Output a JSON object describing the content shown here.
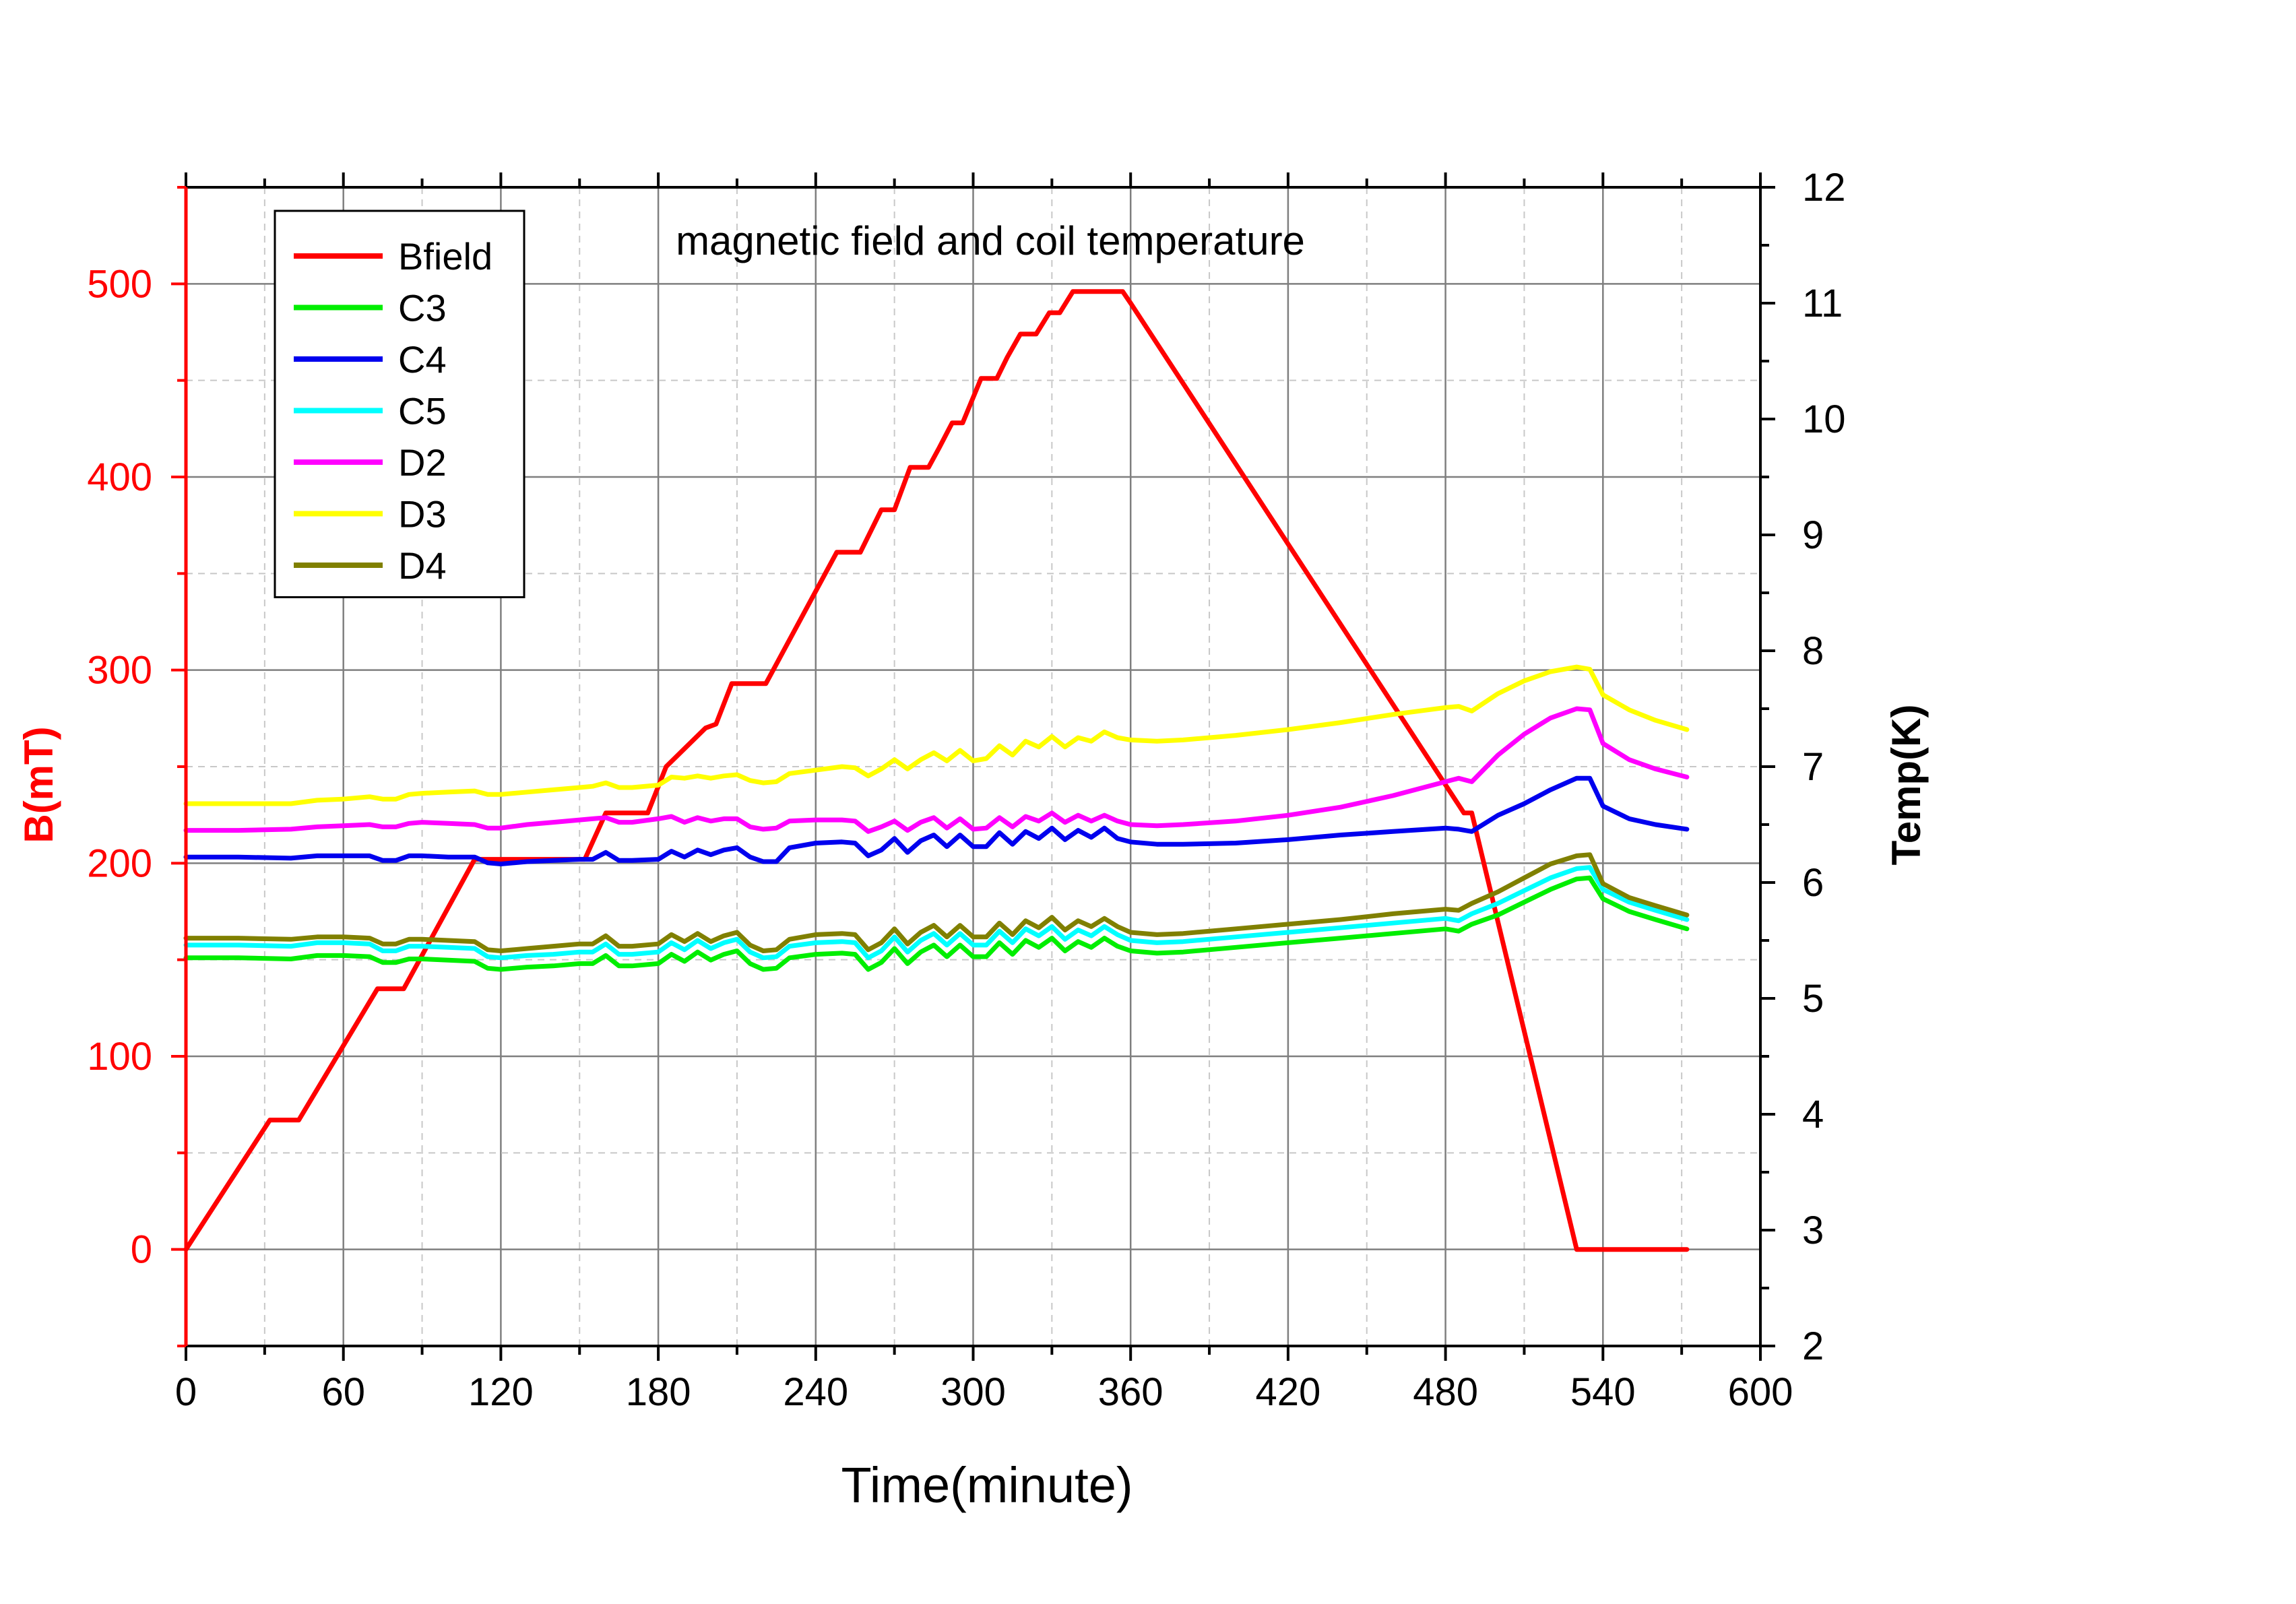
{
  "colors": {
    "left_axis": "#ff0000",
    "right_axis": "#000000",
    "grid_major": "#7f7f7f",
    "grid_minor": "#c8c8c8"
  },
  "chart_data": {
    "type": "line",
    "title": "magnetic field and coil temperature",
    "xlabel": "Time(minute)",
    "ylabel_left": "B(mT)",
    "ylabel_right": "Temp(K)",
    "xlim": [
      0,
      600
    ],
    "ylim_left": [
      -50,
      550
    ],
    "ylim_right": [
      2,
      12
    ],
    "xticks": [
      "0",
      "60",
      "120",
      "180",
      "240",
      "300",
      "360",
      "420",
      "480",
      "540",
      "600"
    ],
    "yticks_left": [
      "0",
      "100",
      "200",
      "300",
      "400",
      "500"
    ],
    "yticks_right": [
      "2",
      "3",
      "4",
      "5",
      "6",
      "7",
      "8",
      "9",
      "10",
      "11",
      "12"
    ],
    "grid": true,
    "legend_position": "top-left",
    "series": [
      {
        "name": "Bfield",
        "axis": "left",
        "color": "#ff0000",
        "x": [
          0,
          32,
          43,
          73,
          83,
          110,
          152,
          160,
          176,
          183,
          198,
          202,
          208,
          221,
          248,
          257,
          265,
          270,
          276,
          283,
          287,
          292,
          296,
          303,
          309,
          313,
          318,
          324,
          329,
          333,
          338,
          345,
          357,
          360,
          487,
          490,
          530,
          572
        ],
        "y": [
          0,
          67,
          67,
          135,
          135,
          202,
          202,
          226,
          226,
          250,
          270,
          272,
          293,
          293,
          361,
          361,
          383,
          383,
          405,
          405,
          415,
          428,
          428,
          451,
          451,
          462,
          474,
          474,
          485,
          485,
          496,
          496,
          496,
          490,
          226,
          226,
          0,
          0
        ]
      },
      {
        "name": "C3",
        "axis": "right",
        "color": "#00ee00",
        "x": [
          0,
          20,
          40,
          50,
          60,
          70,
          75,
          80,
          85,
          90,
          100,
          110,
          115,
          120,
          130,
          140,
          150,
          155,
          160,
          165,
          170,
          180,
          185,
          190,
          195,
          200,
          205,
          210,
          215,
          220,
          225,
          230,
          240,
          250,
          255,
          260,
          265,
          270,
          275,
          280,
          285,
          290,
          295,
          300,
          305,
          310,
          315,
          320,
          325,
          330,
          335,
          340,
          345,
          350,
          355,
          360,
          370,
          380,
          400,
          420,
          440,
          460,
          480,
          485,
          490,
          500,
          510,
          520,
          530,
          535,
          540,
          550,
          560,
          572
        ],
        "y": [
          5.35,
          5.35,
          5.34,
          5.37,
          5.37,
          5.36,
          5.31,
          5.31,
          5.34,
          5.34,
          5.33,
          5.32,
          5.26,
          5.25,
          5.27,
          5.28,
          5.3,
          5.3,
          5.37,
          5.28,
          5.28,
          5.3,
          5.38,
          5.32,
          5.4,
          5.33,
          5.38,
          5.41,
          5.3,
          5.25,
          5.26,
          5.35,
          5.38,
          5.39,
          5.38,
          5.25,
          5.31,
          5.43,
          5.3,
          5.4,
          5.46,
          5.36,
          5.46,
          5.36,
          5.36,
          5.48,
          5.38,
          5.5,
          5.44,
          5.52,
          5.41,
          5.49,
          5.44,
          5.52,
          5.45,
          5.41,
          5.39,
          5.4,
          5.44,
          5.48,
          5.52,
          5.56,
          5.6,
          5.58,
          5.64,
          5.72,
          5.83,
          5.94,
          6.03,
          6.04,
          5.86,
          5.75,
          5.68,
          5.6
        ]
      },
      {
        "name": "C4",
        "axis": "right",
        "color": "#0000ee",
        "x": [
          0,
          20,
          40,
          50,
          60,
          70,
          75,
          80,
          85,
          90,
          100,
          110,
          115,
          120,
          130,
          140,
          150,
          155,
          160,
          165,
          170,
          180,
          185,
          190,
          195,
          200,
          205,
          210,
          215,
          220,
          225,
          230,
          240,
          250,
          255,
          260,
          265,
          270,
          275,
          280,
          285,
          290,
          295,
          300,
          305,
          310,
          315,
          320,
          325,
          330,
          335,
          340,
          345,
          350,
          355,
          360,
          370,
          380,
          400,
          420,
          440,
          460,
          480,
          485,
          490,
          500,
          510,
          520,
          530,
          535,
          540,
          550,
          560,
          572
        ],
        "y": [
          6.22,
          6.22,
          6.21,
          6.23,
          6.23,
          6.23,
          6.19,
          6.19,
          6.23,
          6.23,
          6.22,
          6.22,
          6.17,
          6.16,
          6.18,
          6.19,
          6.2,
          6.2,
          6.26,
          6.19,
          6.19,
          6.2,
          6.27,
          6.22,
          6.28,
          6.24,
          6.28,
          6.3,
          6.22,
          6.18,
          6.18,
          6.3,
          6.34,
          6.35,
          6.34,
          6.23,
          6.28,
          6.38,
          6.26,
          6.36,
          6.41,
          6.31,
          6.41,
          6.31,
          6.31,
          6.43,
          6.33,
          6.44,
          6.38,
          6.47,
          6.37,
          6.45,
          6.39,
          6.47,
          6.38,
          6.35,
          6.33,
          6.33,
          6.34,
          6.37,
          6.41,
          6.44,
          6.47,
          6.46,
          6.44,
          6.58,
          6.68,
          6.8,
          6.9,
          6.9,
          6.66,
          6.55,
          6.5,
          6.46
        ]
      },
      {
        "name": "C5",
        "axis": "right",
        "color": "#00ffff",
        "x": [
          0,
          20,
          40,
          50,
          60,
          70,
          75,
          80,
          85,
          90,
          100,
          110,
          115,
          120,
          130,
          140,
          150,
          155,
          160,
          165,
          170,
          180,
          185,
          190,
          195,
          200,
          205,
          210,
          215,
          220,
          225,
          230,
          240,
          250,
          255,
          260,
          265,
          270,
          275,
          280,
          285,
          290,
          295,
          300,
          305,
          310,
          315,
          320,
          325,
          330,
          335,
          340,
          345,
          350,
          355,
          360,
          370,
          380,
          400,
          420,
          440,
          460,
          480,
          485,
          490,
          500,
          510,
          520,
          530,
          535,
          540,
          550,
          560,
          572
        ],
        "y": [
          5.46,
          5.46,
          5.45,
          5.48,
          5.48,
          5.47,
          5.41,
          5.41,
          5.45,
          5.45,
          5.44,
          5.43,
          5.36,
          5.35,
          5.37,
          5.38,
          5.4,
          5.4,
          5.47,
          5.38,
          5.38,
          5.4,
          5.48,
          5.42,
          5.5,
          5.43,
          5.48,
          5.51,
          5.4,
          5.35,
          5.36,
          5.45,
          5.48,
          5.49,
          5.48,
          5.35,
          5.41,
          5.53,
          5.4,
          5.5,
          5.56,
          5.46,
          5.56,
          5.46,
          5.46,
          5.58,
          5.48,
          5.6,
          5.54,
          5.62,
          5.51,
          5.59,
          5.54,
          5.62,
          5.55,
          5.5,
          5.48,
          5.49,
          5.53,
          5.57,
          5.61,
          5.65,
          5.69,
          5.67,
          5.73,
          5.82,
          5.93,
          6.04,
          6.12,
          6.13,
          5.94,
          5.83,
          5.76,
          5.68
        ]
      },
      {
        "name": "D2",
        "axis": "right",
        "color": "#ff00ff",
        "x": [
          0,
          20,
          40,
          50,
          60,
          70,
          75,
          80,
          85,
          90,
          100,
          110,
          115,
          120,
          130,
          140,
          150,
          155,
          160,
          165,
          170,
          180,
          185,
          190,
          195,
          200,
          205,
          210,
          215,
          220,
          225,
          230,
          240,
          250,
          255,
          260,
          265,
          270,
          275,
          280,
          285,
          290,
          295,
          300,
          305,
          310,
          315,
          320,
          325,
          330,
          335,
          340,
          345,
          350,
          355,
          360,
          370,
          380,
          400,
          420,
          440,
          460,
          480,
          485,
          490,
          500,
          510,
          520,
          530,
          535,
          540,
          550,
          560,
          572
        ],
        "y": [
          6.45,
          6.45,
          6.46,
          6.48,
          6.49,
          6.5,
          6.48,
          6.48,
          6.51,
          6.52,
          6.51,
          6.5,
          6.47,
          6.47,
          6.5,
          6.52,
          6.54,
          6.55,
          6.56,
          6.52,
          6.52,
          6.55,
          6.57,
          6.52,
          6.56,
          6.53,
          6.55,
          6.55,
          6.48,
          6.46,
          6.47,
          6.53,
          6.54,
          6.54,
          6.53,
          6.44,
          6.48,
          6.53,
          6.45,
          6.52,
          6.56,
          6.47,
          6.55,
          6.46,
          6.47,
          6.56,
          6.48,
          6.57,
          6.53,
          6.6,
          6.52,
          6.58,
          6.53,
          6.58,
          6.53,
          6.5,
          6.49,
          6.5,
          6.53,
          6.58,
          6.65,
          6.75,
          6.87,
          6.9,
          6.87,
          7.1,
          7.28,
          7.42,
          7.5,
          7.49,
          7.2,
          7.06,
          6.98,
          6.91
        ]
      },
      {
        "name": "D3",
        "axis": "right",
        "color": "#ffff00",
        "x": [
          0,
          20,
          40,
          50,
          60,
          70,
          75,
          80,
          85,
          90,
          100,
          110,
          115,
          120,
          130,
          140,
          150,
          155,
          160,
          165,
          170,
          180,
          185,
          190,
          195,
          200,
          205,
          210,
          215,
          220,
          225,
          230,
          240,
          250,
          255,
          260,
          265,
          270,
          275,
          280,
          285,
          290,
          295,
          300,
          305,
          310,
          315,
          320,
          325,
          330,
          335,
          340,
          345,
          350,
          355,
          360,
          370,
          380,
          400,
          420,
          440,
          460,
          480,
          485,
          490,
          500,
          510,
          520,
          530,
          535,
          540,
          550,
          560,
          572
        ],
        "y": [
          6.68,
          6.68,
          6.68,
          6.71,
          6.72,
          6.74,
          6.72,
          6.72,
          6.76,
          6.77,
          6.78,
          6.79,
          6.76,
          6.76,
          6.78,
          6.8,
          6.82,
          6.83,
          6.86,
          6.82,
          6.82,
          6.84,
          6.91,
          6.9,
          6.92,
          6.9,
          6.92,
          6.93,
          6.88,
          6.86,
          6.87,
          6.94,
          6.97,
          7.0,
          6.99,
          6.92,
          6.98,
          7.06,
          6.98,
          7.06,
          7.12,
          7.05,
          7.14,
          7.05,
          7.07,
          7.18,
          7.1,
          7.22,
          7.17,
          7.26,
          7.17,
          7.25,
          7.22,
          7.3,
          7.25,
          7.23,
          7.22,
          7.23,
          7.27,
          7.32,
          7.38,
          7.45,
          7.51,
          7.52,
          7.48,
          7.63,
          7.74,
          7.82,
          7.86,
          7.84,
          7.62,
          7.49,
          7.4,
          7.32
        ]
      },
      {
        "name": "D4",
        "axis": "right",
        "color": "#808000",
        "x": [
          0,
          20,
          40,
          50,
          60,
          70,
          75,
          80,
          85,
          90,
          100,
          110,
          115,
          120,
          130,
          140,
          150,
          155,
          160,
          165,
          170,
          180,
          185,
          190,
          195,
          200,
          205,
          210,
          215,
          220,
          225,
          230,
          240,
          250,
          255,
          260,
          265,
          270,
          275,
          280,
          285,
          290,
          295,
          300,
          305,
          310,
          315,
          320,
          325,
          330,
          335,
          340,
          345,
          350,
          355,
          360,
          370,
          380,
          400,
          420,
          440,
          460,
          480,
          485,
          490,
          500,
          510,
          520,
          530,
          535,
          540,
          550,
          560,
          572
        ],
        "y": [
          5.52,
          5.52,
          5.51,
          5.53,
          5.53,
          5.52,
          5.47,
          5.47,
          5.51,
          5.51,
          5.5,
          5.49,
          5.42,
          5.41,
          5.43,
          5.45,
          5.47,
          5.47,
          5.54,
          5.45,
          5.45,
          5.47,
          5.55,
          5.49,
          5.56,
          5.49,
          5.54,
          5.57,
          5.46,
          5.41,
          5.42,
          5.51,
          5.55,
          5.56,
          5.55,
          5.42,
          5.48,
          5.6,
          5.47,
          5.57,
          5.63,
          5.53,
          5.63,
          5.53,
          5.53,
          5.65,
          5.55,
          5.67,
          5.61,
          5.7,
          5.59,
          5.67,
          5.62,
          5.69,
          5.62,
          5.57,
          5.55,
          5.56,
          5.6,
          5.64,
          5.68,
          5.73,
          5.77,
          5.76,
          5.82,
          5.92,
          6.04,
          6.16,
          6.23,
          6.24,
          5.99,
          5.87,
          5.8,
          5.72
        ]
      }
    ]
  }
}
